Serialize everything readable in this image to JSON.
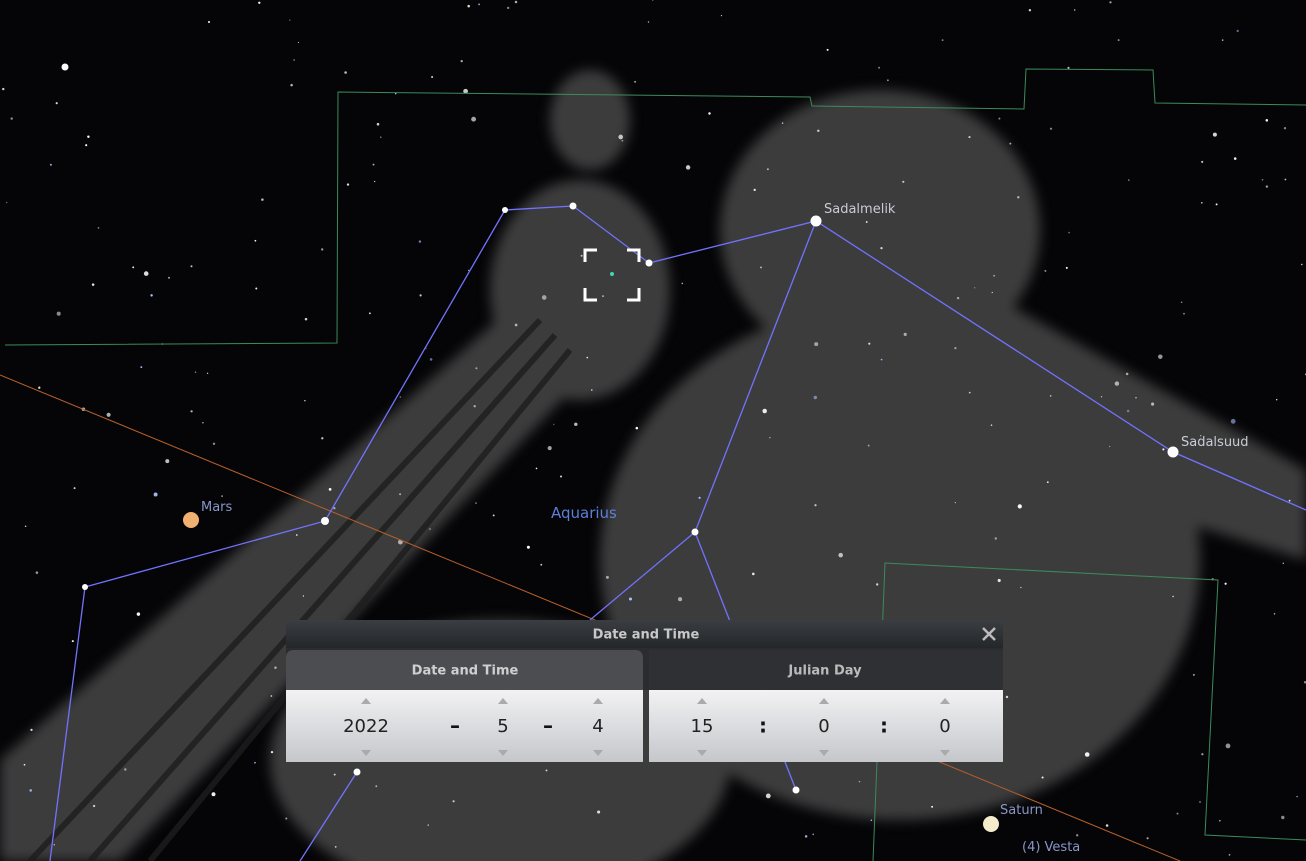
{
  "sky_labels": [
    "Sadalmelik",
    "Sadalsuud",
    "Mars",
    "Aquarius",
    "Saturn",
    "(4) Vesta"
  ],
  "dialog": {
    "title": "Date and Time",
    "tabs": [
      "Date and Time",
      "Julian Day"
    ],
    "date": {
      "year": 2022,
      "month": 5,
      "day": 4,
      "separator": "–"
    },
    "time": {
      "hour": 15,
      "minute": 0,
      "second": 0,
      "separator": ":"
    }
  }
}
